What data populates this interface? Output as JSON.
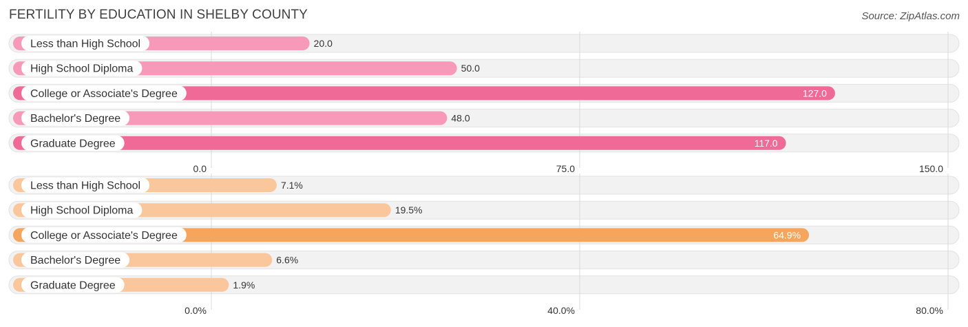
{
  "header": {
    "title": "FERTILITY BY EDUCATION IN SHELBY COUNTY",
    "source": "Source: ZipAtlas.com"
  },
  "chart_data": [
    {
      "type": "bar",
      "orientation": "horizontal",
      "categories": [
        "Less than High School",
        "High School Diploma",
        "College or Associate's Degree",
        "Bachelor's Degree",
        "Graduate Degree"
      ],
      "values": [
        20.0,
        50.0,
        127.0,
        48.0,
        117.0
      ],
      "value_labels": [
        "20.0",
        "50.0",
        "127.0",
        "48.0",
        "117.0"
      ],
      "xlim": [
        0,
        150
      ],
      "ticks": [
        0,
        75,
        150
      ],
      "tick_labels": [
        "0.0",
        "75.0",
        "150.0"
      ],
      "grid": true,
      "colors": {
        "bar": "#f799b8",
        "highlight": "#f06a98"
      },
      "highlight_threshold": 100
    },
    {
      "type": "bar",
      "orientation": "horizontal",
      "categories": [
        "Less than High School",
        "High School Diploma",
        "College or Associate's Degree",
        "Bachelor's Degree",
        "Graduate Degree"
      ],
      "values": [
        7.1,
        19.5,
        64.9,
        6.6,
        1.9
      ],
      "value_labels": [
        "7.1%",
        "19.5%",
        "64.9%",
        "6.6%",
        "1.9%"
      ],
      "xlim": [
        0,
        80
      ],
      "ticks": [
        0,
        40,
        80
      ],
      "tick_labels": [
        "0.0%",
        "40.0%",
        "80.0%"
      ],
      "grid": true,
      "colors": {
        "bar": "#f9c79b",
        "highlight": "#f5a55c"
      },
      "highlight_threshold": 50
    }
  ]
}
